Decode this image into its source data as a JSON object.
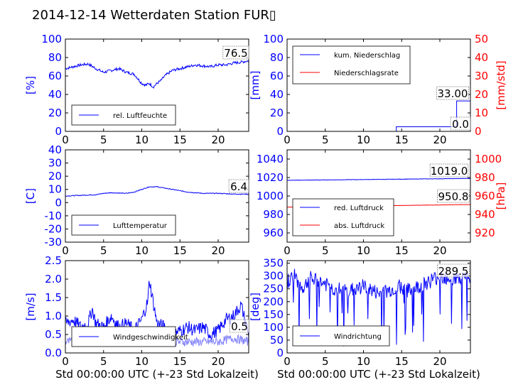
{
  "title": "2014-12-14 Wetterdaten Station FUR▯",
  "colors": {
    "blue": "#0000ff",
    "red": "#ff0000",
    "light_blue": "#8080ff",
    "axis": "#000000"
  },
  "xlabel": "Std 00:00:00 UTC (+-23 Std Lokalzeit)",
  "chart_data": [
    {
      "id": "humidity",
      "type": "line",
      "xlim": [
        0,
        24
      ],
      "xticks": [
        0,
        5,
        10,
        15,
        20
      ],
      "ylim": [
        0,
        100
      ],
      "yticks": [
        0,
        20,
        40,
        60,
        80,
        100
      ],
      "ylabel": "[%]",
      "ylabel_color": "#0000ff",
      "legend": {
        "position": "lower-left",
        "entries": [
          "rel. Luftfeuchte"
        ]
      },
      "annotation": "76.5",
      "series": [
        {
          "name": "rel. Luftfeuchte",
          "color": "#0000ff",
          "noise": 1.5,
          "x": [
            0,
            1,
            2,
            3,
            4,
            5,
            6,
            7,
            8,
            9,
            10,
            10.5,
            11,
            11.5,
            12,
            12.5,
            13,
            13.5,
            14,
            15,
            16,
            17,
            18,
            19,
            20,
            21,
            22,
            23,
            24
          ],
          "y": [
            68,
            70,
            72,
            73,
            68,
            64,
            66,
            68,
            64,
            62,
            52,
            50,
            52,
            48,
            52,
            55,
            60,
            63,
            66,
            68,
            70,
            72,
            71,
            70,
            72,
            72,
            74,
            75,
            76.5
          ]
        }
      ]
    },
    {
      "id": "precipitation",
      "type": "line",
      "xlim": [
        0,
        24
      ],
      "xticks": [
        0,
        5,
        10,
        15,
        20
      ],
      "ylim": [
        0,
        100
      ],
      "yticks": [
        0,
        20,
        40,
        60,
        80,
        100
      ],
      "ylabel": "[mm]",
      "ylabel_color": "#0000ff",
      "y2lim": [
        0,
        50
      ],
      "y2ticks": [
        0,
        10,
        20,
        30,
        40,
        50
      ],
      "y2label": "[mm/std]",
      "y2label_color": "#ff0000",
      "legend": {
        "position": "upper-left",
        "entries": [
          "kum. Niederschlag",
          "Niederschlagsrate"
        ]
      },
      "annotations": [
        "33.00",
        "0.0"
      ],
      "series": [
        {
          "name": "kum. Niederschlag",
          "color": "#0000ff",
          "axis": "left",
          "x": [
            0,
            14.3,
            14.3,
            22.2,
            22.2,
            24
          ],
          "y": [
            0,
            0,
            5,
            5,
            33,
            33
          ]
        },
        {
          "name": "Niederschlagsrate",
          "color": "#ff0000",
          "axis": "right",
          "x": [
            0,
            24
          ],
          "y": [
            0,
            0
          ]
        }
      ]
    },
    {
      "id": "temperature",
      "type": "line",
      "xlim": [
        0,
        24
      ],
      "xticks": [
        0,
        5,
        10,
        15,
        20
      ],
      "ylim": [
        -30,
        40
      ],
      "yticks": [
        -30,
        -20,
        -10,
        0,
        10,
        20,
        30,
        40
      ],
      "ylabel": "[C]",
      "ylabel_color": "#0000ff",
      "legend": {
        "position": "lower-left",
        "entries": [
          "Lufttemperatur"
        ]
      },
      "annotation": "6.4",
      "series": [
        {
          "name": "Lufttemperatur",
          "color": "#0000ff",
          "noise": 0.3,
          "x": [
            0,
            2,
            4,
            5,
            6,
            8,
            9,
            10,
            11,
            12,
            13,
            14,
            15,
            16,
            18,
            20,
            22,
            24
          ],
          "y": [
            5,
            5.5,
            6,
            7,
            7.5,
            7,
            8,
            10,
            12,
            12,
            11,
            10,
            9,
            8,
            7,
            7,
            6.5,
            6.4
          ]
        }
      ]
    },
    {
      "id": "pressure",
      "type": "line",
      "xlim": [
        0,
        24
      ],
      "xticks": [
        0,
        5,
        10,
        15,
        20
      ],
      "ylim": [
        950,
        1050
      ],
      "yticks": [
        960,
        980,
        1000,
        1020,
        1040
      ],
      "ylabel": "",
      "ylabel_color": "#0000ff",
      "y2lim": [
        910,
        1010
      ],
      "y2ticks": [
        920,
        940,
        960,
        980,
        1000
      ],
      "y2label": "[hPa]",
      "y2label_color": "#ff0000",
      "legend": {
        "position": "lower-left",
        "entries": [
          "red. Luftdruck",
          "abs. Luftdruck"
        ]
      },
      "annotations": [
        "1019.0",
        "950.8"
      ],
      "series": [
        {
          "name": "red. Luftdruck",
          "color": "#0000ff",
          "axis": "left",
          "noise": 0.2,
          "x": [
            0,
            6,
            12,
            18,
            24
          ],
          "y": [
            1017,
            1017.5,
            1018,
            1018.5,
            1019
          ]
        },
        {
          "name": "abs. Luftdruck",
          "color": "#ff0000",
          "axis": "right",
          "noise": 0.15,
          "x": [
            0,
            24
          ],
          "y": [
            948,
            950.8
          ]
        }
      ]
    },
    {
      "id": "wind_speed",
      "type": "line",
      "xlim": [
        0,
        24
      ],
      "xticks": [
        0,
        5,
        10,
        15,
        20
      ],
      "ylim": [
        0,
        2.5
      ],
      "yticks": [
        0.0,
        0.5,
        1.0,
        1.5,
        2.0,
        2.5
      ],
      "ylabel": "[m/s]",
      "ylabel_color": "#0000ff",
      "legend": {
        "position": "lower-left",
        "entries": [
          "Windgeschwindigkeit"
        ]
      },
      "annotation": "0.5",
      "series": [
        {
          "name": "Windgeschwindigkeit",
          "color": "#0000ff",
          "noise": 0.18,
          "x": [
            0,
            1,
            2,
            3,
            3.5,
            4,
            5,
            6,
            7,
            8,
            9,
            10,
            10.8,
            11,
            11.3,
            12,
            13,
            14,
            15,
            16,
            17,
            18,
            19,
            20,
            21,
            22,
            23,
            23.5,
            24
          ],
          "y": [
            0.8,
            0.9,
            0.7,
            0.8,
            1.2,
            0.8,
            0.7,
            1.0,
            0.7,
            0.8,
            0.6,
            0.9,
            1.4,
            2.0,
            1.6,
            0.8,
            0.7,
            0.5,
            0.6,
            0.7,
            0.6,
            0.7,
            0.5,
            0.6,
            0.9,
            1.0,
            1.3,
            0.9,
            0.5
          ]
        },
        {
          "name": "",
          "color": "#8080ff",
          "noise": 0.12,
          "x": [
            0,
            2,
            4,
            6,
            8,
            10,
            12,
            14,
            16,
            18,
            20,
            22,
            24
          ],
          "y": [
            0.3,
            0.3,
            0.4,
            0.4,
            0.3,
            0.4,
            0.4,
            0.3,
            0.3,
            0.3,
            0.3,
            0.4,
            0.3
          ]
        }
      ]
    },
    {
      "id": "wind_direction",
      "type": "line",
      "xlim": [
        0,
        24
      ],
      "xticks": [
        0,
        5,
        10,
        15,
        20
      ],
      "ylim": [
        0,
        360
      ],
      "yticks": [
        0,
        50,
        100,
        150,
        200,
        250,
        300,
        350
      ],
      "ylabel": "[deg]",
      "ylabel_color": "#0000ff",
      "legend": {
        "position": "lower-left",
        "entries": [
          "Windrichtung"
        ]
      },
      "annotation": "289.5",
      "series": [
        {
          "name": "Windrichtung",
          "color": "#0000ff",
          "noise": 30,
          "spikes": true,
          "x": [
            0,
            1,
            2,
            3,
            4,
            5,
            6,
            8,
            10,
            12,
            13,
            14,
            15,
            16,
            18,
            20,
            22,
            24
          ],
          "y": [
            280,
            300,
            250,
            290,
            280,
            270,
            250,
            240,
            260,
            230,
            240,
            250,
            260,
            240,
            270,
            300,
            290,
            289.5
          ]
        }
      ]
    }
  ]
}
